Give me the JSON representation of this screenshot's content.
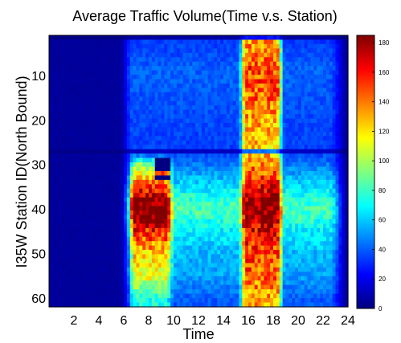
{
  "chart_data": {
    "type": "heatmap",
    "title": "Average Traffic Volume(Time v.s. Station)",
    "xlabel": "Time",
    "ylabel": "I35W Station ID(North Bound)",
    "x_range": [
      0,
      24
    ],
    "y_range": [
      1,
      62
    ],
    "y_reversed": true,
    "x_ticks": [
      "2",
      "4",
      "6",
      "8",
      "10",
      "12",
      "14",
      "16",
      "18",
      "20",
      "22",
      "24"
    ],
    "y_ticks": [
      "10",
      "20",
      "30",
      "40",
      "50",
      "60"
    ],
    "colorbar": {
      "colormap": "jet",
      "range": [
        0,
        185
      ],
      "ticks": [
        "0",
        "20",
        "40",
        "60",
        "80",
        "100",
        "120",
        "140",
        "160",
        "180"
      ]
    },
    "approximate_pattern": {
      "night_hours": [
        0,
        6
      ],
      "night_volume": 5,
      "daytime_volume": 45,
      "morning_peak_hours": [
        6.3,
        9.8
      ],
      "evening_peak_hours": [
        15.5,
        18.5
      ],
      "station_detail_rows": [
        {
          "station": 1,
          "volume": 2
        },
        {
          "station": 7,
          "volume": 20
        },
        {
          "station": 8,
          "volume": 25
        },
        {
          "station": 27,
          "volume": 5
        },
        {
          "station": 35,
          "volume": 90
        },
        {
          "station": 38,
          "volume": 130
        },
        {
          "station": 40,
          "volume": 140
        },
        {
          "station": 42,
          "volume": 135
        },
        {
          "station": 44,
          "volume": 110
        },
        {
          "station": 50,
          "volume": 70
        },
        {
          "station": 55,
          "volume": 60
        },
        {
          "station": 61,
          "volume": 20
        }
      ],
      "low_value_block": {
        "hours": [
          8.5,
          9.8
        ],
        "stations": [
          29,
          33
        ],
        "volume": 0
      }
    }
  }
}
